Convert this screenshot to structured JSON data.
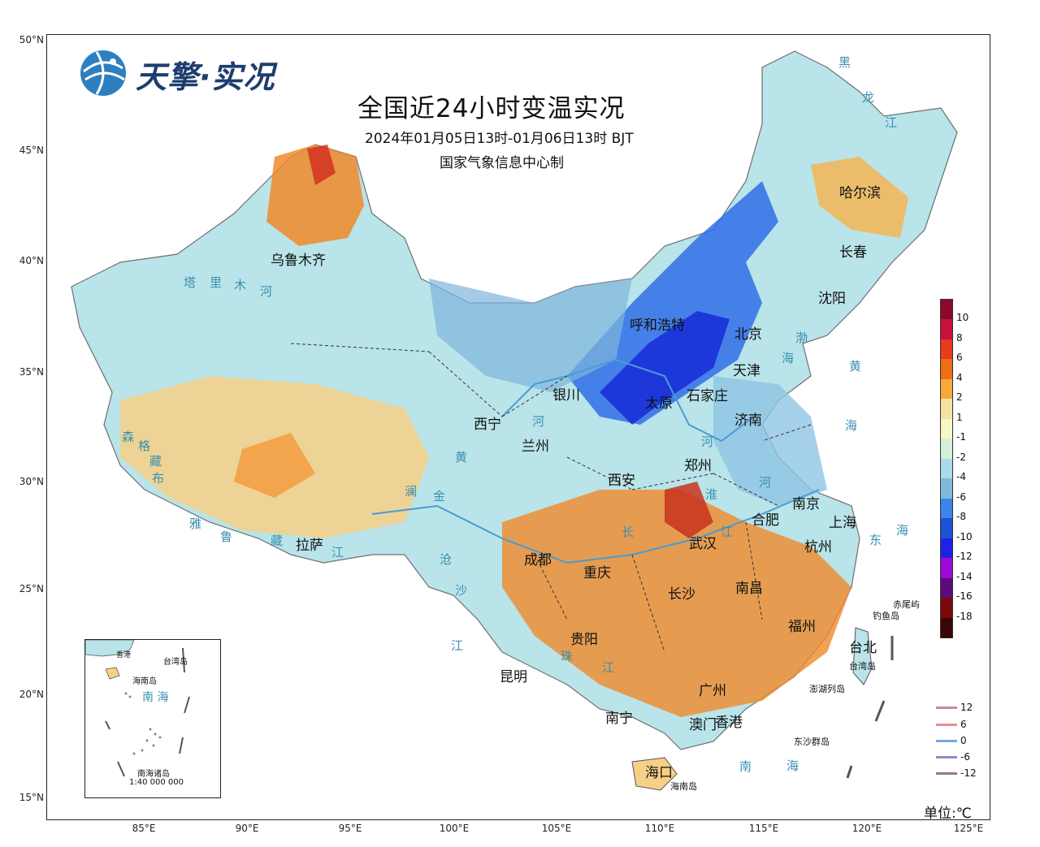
{
  "brand": {
    "name": "天擎·实况"
  },
  "title": "全国近24小时变温实况",
  "subtitle": "2024年01月05日13时-01月06日13时 BJT",
  "maker": "国家气象信息中心制",
  "unit_label": "单位:℃",
  "lat_ticks": [
    "50°N",
    "45°N",
    "40°N",
    "35°N",
    "30°N",
    "25°N",
    "20°N",
    "15°N"
  ],
  "lon_ticks": [
    "85°E",
    "90°E",
    "95°E",
    "100°E",
    "105°E",
    "110°E",
    "115°E",
    "120°E",
    "125°E"
  ],
  "legend": {
    "labels": [
      "10",
      "8",
      "6",
      "4",
      "2",
      "1",
      "-1",
      "-2",
      "-4",
      "-6",
      "-8",
      "-10",
      "-12",
      "-14",
      "-16",
      "-18"
    ],
    "colors": [
      "#8b0a2a",
      "#c8103c",
      "#e83a1c",
      "#ee6e17",
      "#f7a93a",
      "#f7e3a1",
      "#f6f7c5",
      "#d4f0d8",
      "#a9dbe8",
      "#7fb9d8",
      "#3c84ea",
      "#1d52d8",
      "#1f20e8",
      "#9d0ad8",
      "#5b0b7c",
      "#7a0a0a",
      "#3d0505"
    ]
  },
  "contour_key": [
    {
      "label": "12",
      "color": "#c98a9a"
    },
    {
      "label": "6",
      "color": "#e88a94"
    },
    {
      "label": "0",
      "color": "#7aa7e8"
    },
    {
      "label": "-6",
      "color": "#a084c8"
    },
    {
      "label": "-12",
      "color": "#9a7a80"
    }
  ],
  "cities": [
    {
      "name": "乌鲁木齐"
    },
    {
      "name": "哈尔滨"
    },
    {
      "name": "长春"
    },
    {
      "name": "沈阳"
    },
    {
      "name": "呼和浩特"
    },
    {
      "name": "北京"
    },
    {
      "name": "天津"
    },
    {
      "name": "银川"
    },
    {
      "name": "太原"
    },
    {
      "name": "石家庄"
    },
    {
      "name": "济南"
    },
    {
      "name": "西宁"
    },
    {
      "name": "兰州"
    },
    {
      "name": "郑州"
    },
    {
      "name": "西安"
    },
    {
      "name": "南京"
    },
    {
      "name": "合肥"
    },
    {
      "name": "上海"
    },
    {
      "name": "武汉"
    },
    {
      "name": "杭州"
    },
    {
      "name": "成都"
    },
    {
      "name": "重庆"
    },
    {
      "name": "拉萨"
    },
    {
      "name": "长沙"
    },
    {
      "name": "南昌"
    },
    {
      "name": "福州"
    },
    {
      "name": "贵阳"
    },
    {
      "name": "台北"
    },
    {
      "name": "昆明"
    },
    {
      "name": "广州"
    },
    {
      "name": "南宁"
    },
    {
      "name": "澳门"
    },
    {
      "name": "香港"
    },
    {
      "name": "海口"
    }
  ],
  "geo_labels": {
    "tarim_river": [
      "塔",
      "里",
      "木",
      "河"
    ],
    "yellow_river": [
      "黄",
      "河"
    ],
    "yangtze": [
      "长",
      "江"
    ],
    "lancang": [
      "澜",
      "沧",
      "江"
    ],
    "jinsha": [
      "金",
      "沙",
      "江"
    ],
    "nujiang": [
      "怒",
      "江"
    ],
    "yarlung": [
      "雅",
      "鲁",
      "藏",
      "布",
      "江"
    ],
    "pearl": [
      "珠",
      "江"
    ],
    "huai": [
      "淮",
      "河"
    ],
    "heilong": [
      "黑",
      "龙",
      "江"
    ],
    "bohai": [
      "渤",
      "海"
    ],
    "yellow_sea": [
      "黄",
      "海"
    ],
    "east_sea": [
      "东",
      "海"
    ],
    "south_sea": [
      "南",
      "海"
    ],
    "senge": [
      "森",
      "格",
      "藏",
      "布"
    ]
  },
  "islands": {
    "chiwei": "赤尾屿",
    "diaoyu": "钓鱼岛",
    "taiwan": "台湾岛",
    "penghu": "澎湖列岛",
    "dongsha": "东沙群岛",
    "hainan": "海南岛"
  },
  "inset": {
    "hk_label": "香港",
    "taiwan_label": "台湾岛",
    "hainan_label": "海南岛",
    "sea_label": "南 海",
    "nanhai_islands": "南海诸岛",
    "scale": "1:40 000 000"
  }
}
